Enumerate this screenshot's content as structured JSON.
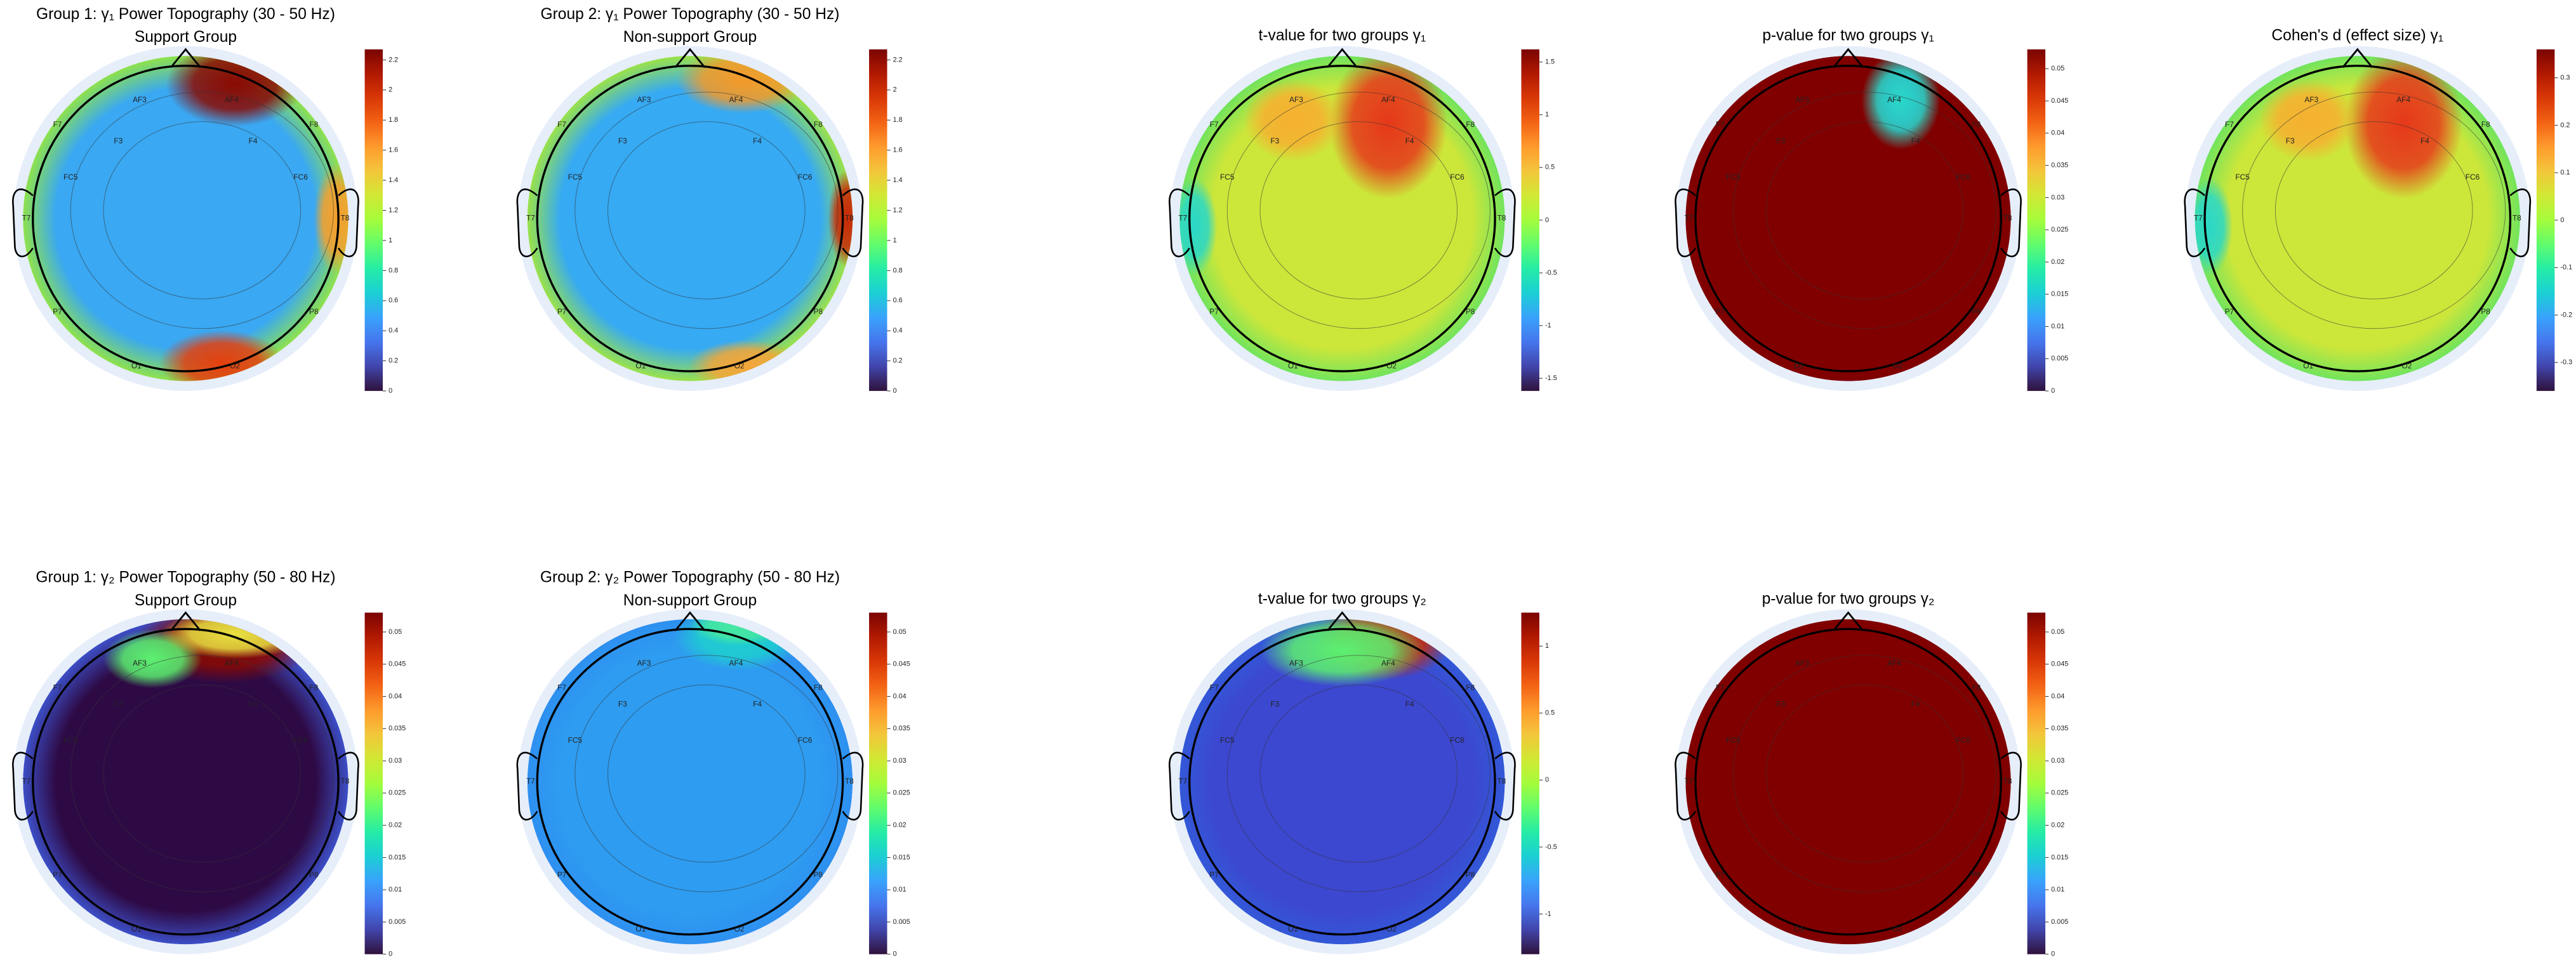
{
  "electrodes": [
    "F7",
    "AF3",
    "AF4",
    "F8",
    "F3",
    "F4",
    "FC5",
    "FC6",
    "T7",
    "T8",
    "P7",
    "P8",
    "O1",
    "O2"
  ],
  "colormap": [
    "#30123b",
    "#4145ab",
    "#4675ed",
    "#39a2fc",
    "#1bcfd4",
    "#24eca6",
    "#61fc6c",
    "#a4fc3b",
    "#d1e834",
    "#f3c63a",
    "#fe9b2d",
    "#f36315",
    "#d93806",
    "#b11901",
    "#7a0403"
  ],
  "chart_data": [
    {
      "type": "topomap",
      "title": "Group 1: γ₁ Power Topography (30 - 50 Hz)",
      "subtitle": "Support Group",
      "clim": [
        0,
        2.27
      ],
      "cticks": [
        0,
        0.2,
        0.4,
        0.6,
        0.8,
        1,
        1.2,
        1.4,
        1.6,
        1.8,
        2,
        2.2
      ],
      "colors": [
        "#3aa8f2",
        "#8ee24c",
        "#8a0a02",
        "#e4400e",
        "#f6a02c"
      ]
    },
    {
      "type": "topomap",
      "title": "Group 2: γ₁ Power Topography (30 - 50 Hz)",
      "subtitle": "Non-support Group",
      "clim": [
        0,
        2.27
      ],
      "cticks": [
        0,
        0.2,
        0.4,
        0.6,
        0.8,
        1,
        1.2,
        1.4,
        1.6,
        1.8,
        2,
        2.2
      ],
      "colors": [
        "#36aaf3",
        "#9ae24a",
        "#f39a2a",
        "#c82a06",
        "#f3a53a"
      ]
    },
    {
      "type": "topomap",
      "title": "t-value for two groups γ₁",
      "clim": [
        -1.62,
        1.62
      ],
      "cticks": [
        -1.5,
        -1,
        -0.5,
        0,
        0.5,
        1,
        1.5
      ],
      "colors": [
        "#cde63a",
        "#72e45c",
        "#e6381a",
        "#2ad8c8",
        "#f6b030"
      ]
    },
    {
      "type": "topomap",
      "title": "p-value for two groups γ₁",
      "clim": [
        0,
        0.053
      ],
      "cticks": [
        0,
        0.005,
        0.01,
        0.015,
        0.02,
        0.025,
        0.03,
        0.035,
        0.04,
        0.045,
        0.05
      ],
      "colors": [
        "#800000",
        "#800000",
        "#3a3fb8",
        "#2ad8c8",
        "#e44010"
      ]
    },
    {
      "type": "topomap",
      "title": "Cohen's d (effect size) γ₁",
      "clim": [
        -0.36,
        0.36
      ],
      "cticks": [
        -0.3,
        -0.2,
        -0.1,
        0,
        0.1,
        0.2,
        0.3
      ],
      "colors": [
        "#cde63a",
        "#72e45c",
        "#e6381a",
        "#2ad8c8",
        "#f6b030"
      ]
    },
    {
      "type": "topomap",
      "title": "Group 1: γ₂ Power Topography (50 - 80 Hz)",
      "subtitle": "Support Group",
      "clim": [
        0,
        0.053
      ],
      "cticks": [
        0,
        0.005,
        0.01,
        0.015,
        0.02,
        0.025,
        0.03,
        0.035,
        0.04,
        0.045,
        0.05
      ],
      "colors": [
        "#2e0a45",
        "#3c4ec6",
        "#8a0a02",
        "#5cf070",
        "#e8e040"
      ]
    },
    {
      "type": "topomap",
      "title": "Group 2: γ₂ Power Topography (50 - 80 Hz)",
      "subtitle": "Non-support Group",
      "clim": [
        0,
        0.053
      ],
      "cticks": [
        0,
        0.005,
        0.01,
        0.015,
        0.02,
        0.025,
        0.03,
        0.035,
        0.04,
        0.045,
        0.05
      ],
      "colors": [
        "#2e9cf0",
        "#2e90f0",
        "#1ecfd0",
        "#46e8a0",
        "#2aa8f6"
      ]
    },
    {
      "type": "topomap",
      "title": "t-value for two groups γ₂",
      "clim": [
        -1.3,
        1.25
      ],
      "cticks": [
        -1,
        -0.5,
        0,
        0.5,
        1
      ],
      "colors": [
        "#3c48d0",
        "#3358d8",
        "#c82a06",
        "#5cf070",
        "#f6b030"
      ]
    },
    {
      "type": "topomap",
      "title": "p-value for two groups γ₂",
      "clim": [
        0,
        0.053
      ],
      "cticks": [
        0,
        0.005,
        0.01,
        0.015,
        0.02,
        0.025,
        0.03,
        0.035,
        0.04,
        0.045,
        0.05
      ],
      "colors": [
        "#800000",
        "#800000",
        "#800000",
        "#800000",
        "#800000"
      ]
    }
  ]
}
